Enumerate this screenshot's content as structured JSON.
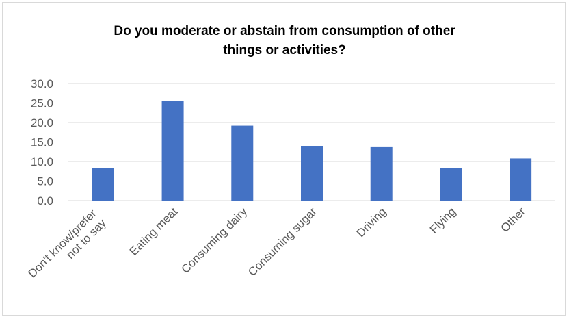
{
  "chart_data": {
    "type": "bar",
    "title_lines": [
      "Do you moderate or abstain from consumption of other",
      "things or activities?"
    ],
    "categories": [
      [
        "Don't know/prefer",
        "not to say"
      ],
      [
        "Eating meat"
      ],
      [
        "Consuming dairy"
      ],
      [
        "Consuming sugar"
      ],
      [
        "Driving"
      ],
      [
        "Flying"
      ],
      [
        "Other"
      ]
    ],
    "values": [
      8.4,
      25.5,
      19.2,
      13.9,
      13.7,
      8.4,
      10.8
    ],
    "ylim": [
      0,
      30
    ],
    "yticks": [
      "0.0",
      "5.0",
      "10.0",
      "15.0",
      "20.0",
      "25.0",
      "30.0"
    ],
    "bar_color": "#4472c4",
    "grid": true,
    "legend": false
  }
}
